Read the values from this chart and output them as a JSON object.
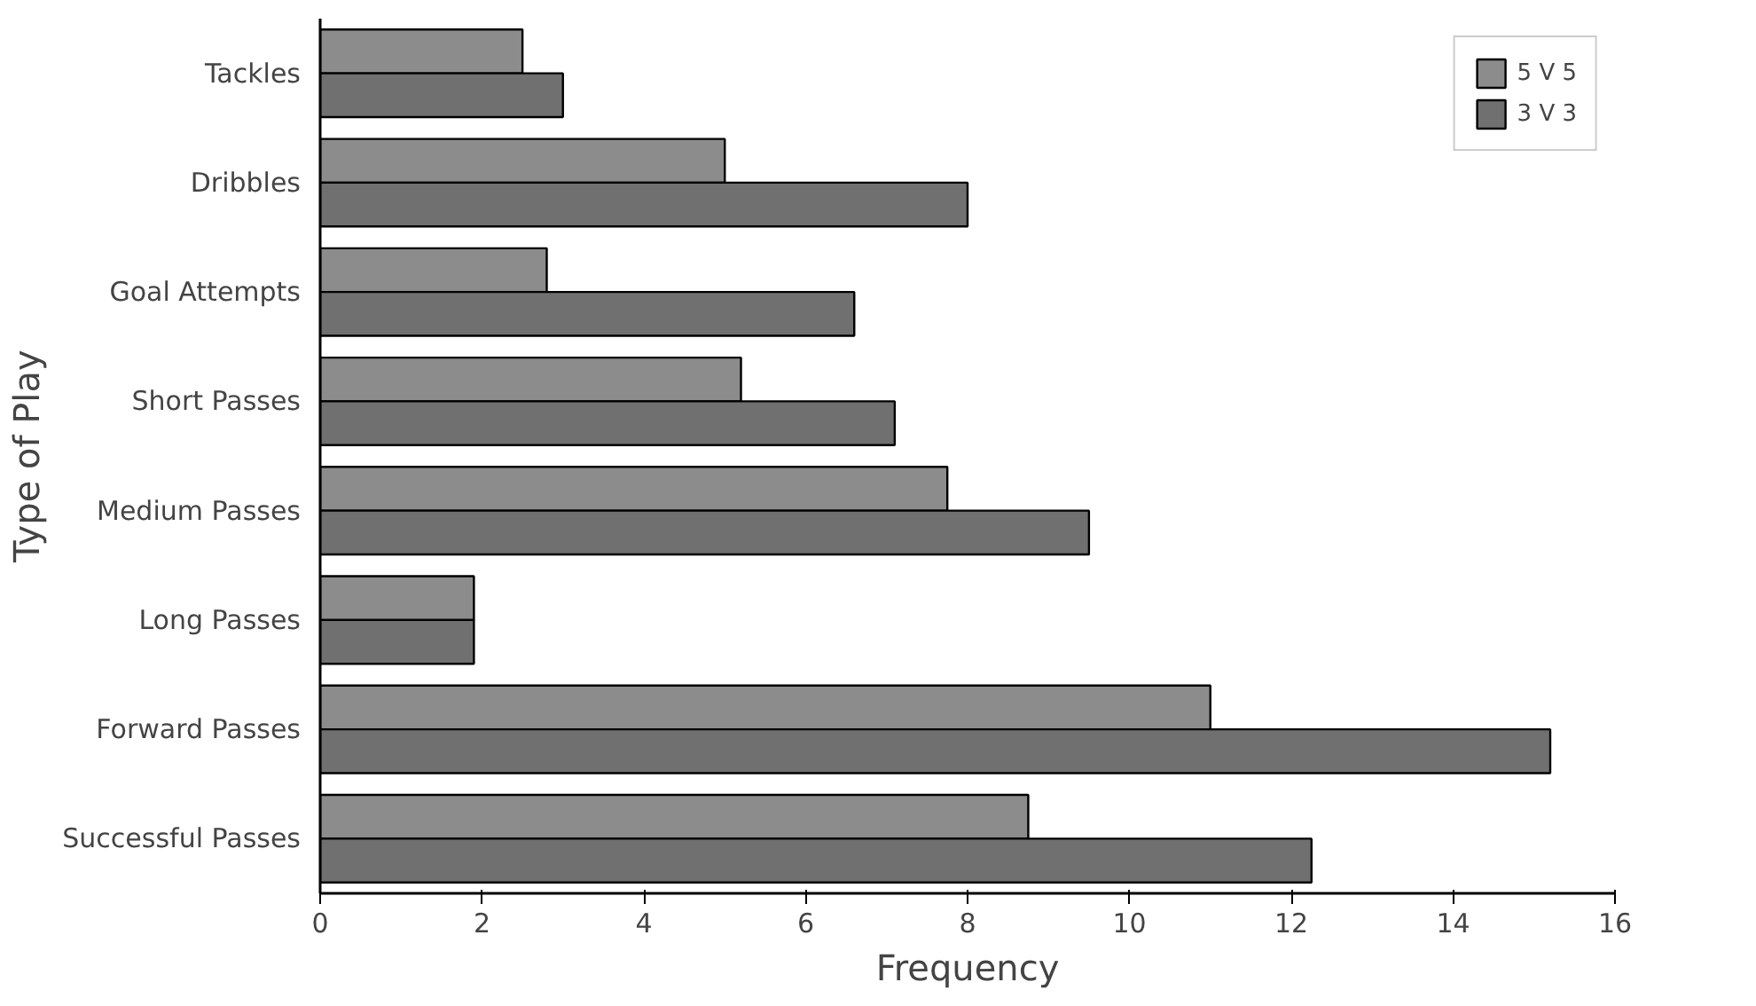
{
  "chart_data": {
    "type": "bar",
    "orientation": "horizontal",
    "xlabel": "Frequency",
    "ylabel": "Type of Play",
    "categories": [
      "Tackles",
      "Dribbles",
      "Goal Attempts",
      "Short Passes",
      "Medium Passes",
      "Long Passes",
      "Forward Passes",
      "Successful Passes"
    ],
    "series": [
      {
        "name": "5 V 5",
        "color": "#8c8c8c",
        "values": [
          2.5,
          5.0,
          2.8,
          5.2,
          7.75,
          1.9,
          11.0,
          8.75
        ]
      },
      {
        "name": "3 V 3",
        "color": "#707070",
        "values": [
          3.0,
          8.0,
          6.6,
          7.1,
          9.5,
          1.9,
          15.2,
          12.25
        ]
      }
    ],
    "xlim": [
      0,
      16
    ],
    "xticks": [
      0,
      2,
      4,
      6,
      8,
      10,
      12,
      14,
      16
    ],
    "grid": false,
    "legend": "top right"
  }
}
